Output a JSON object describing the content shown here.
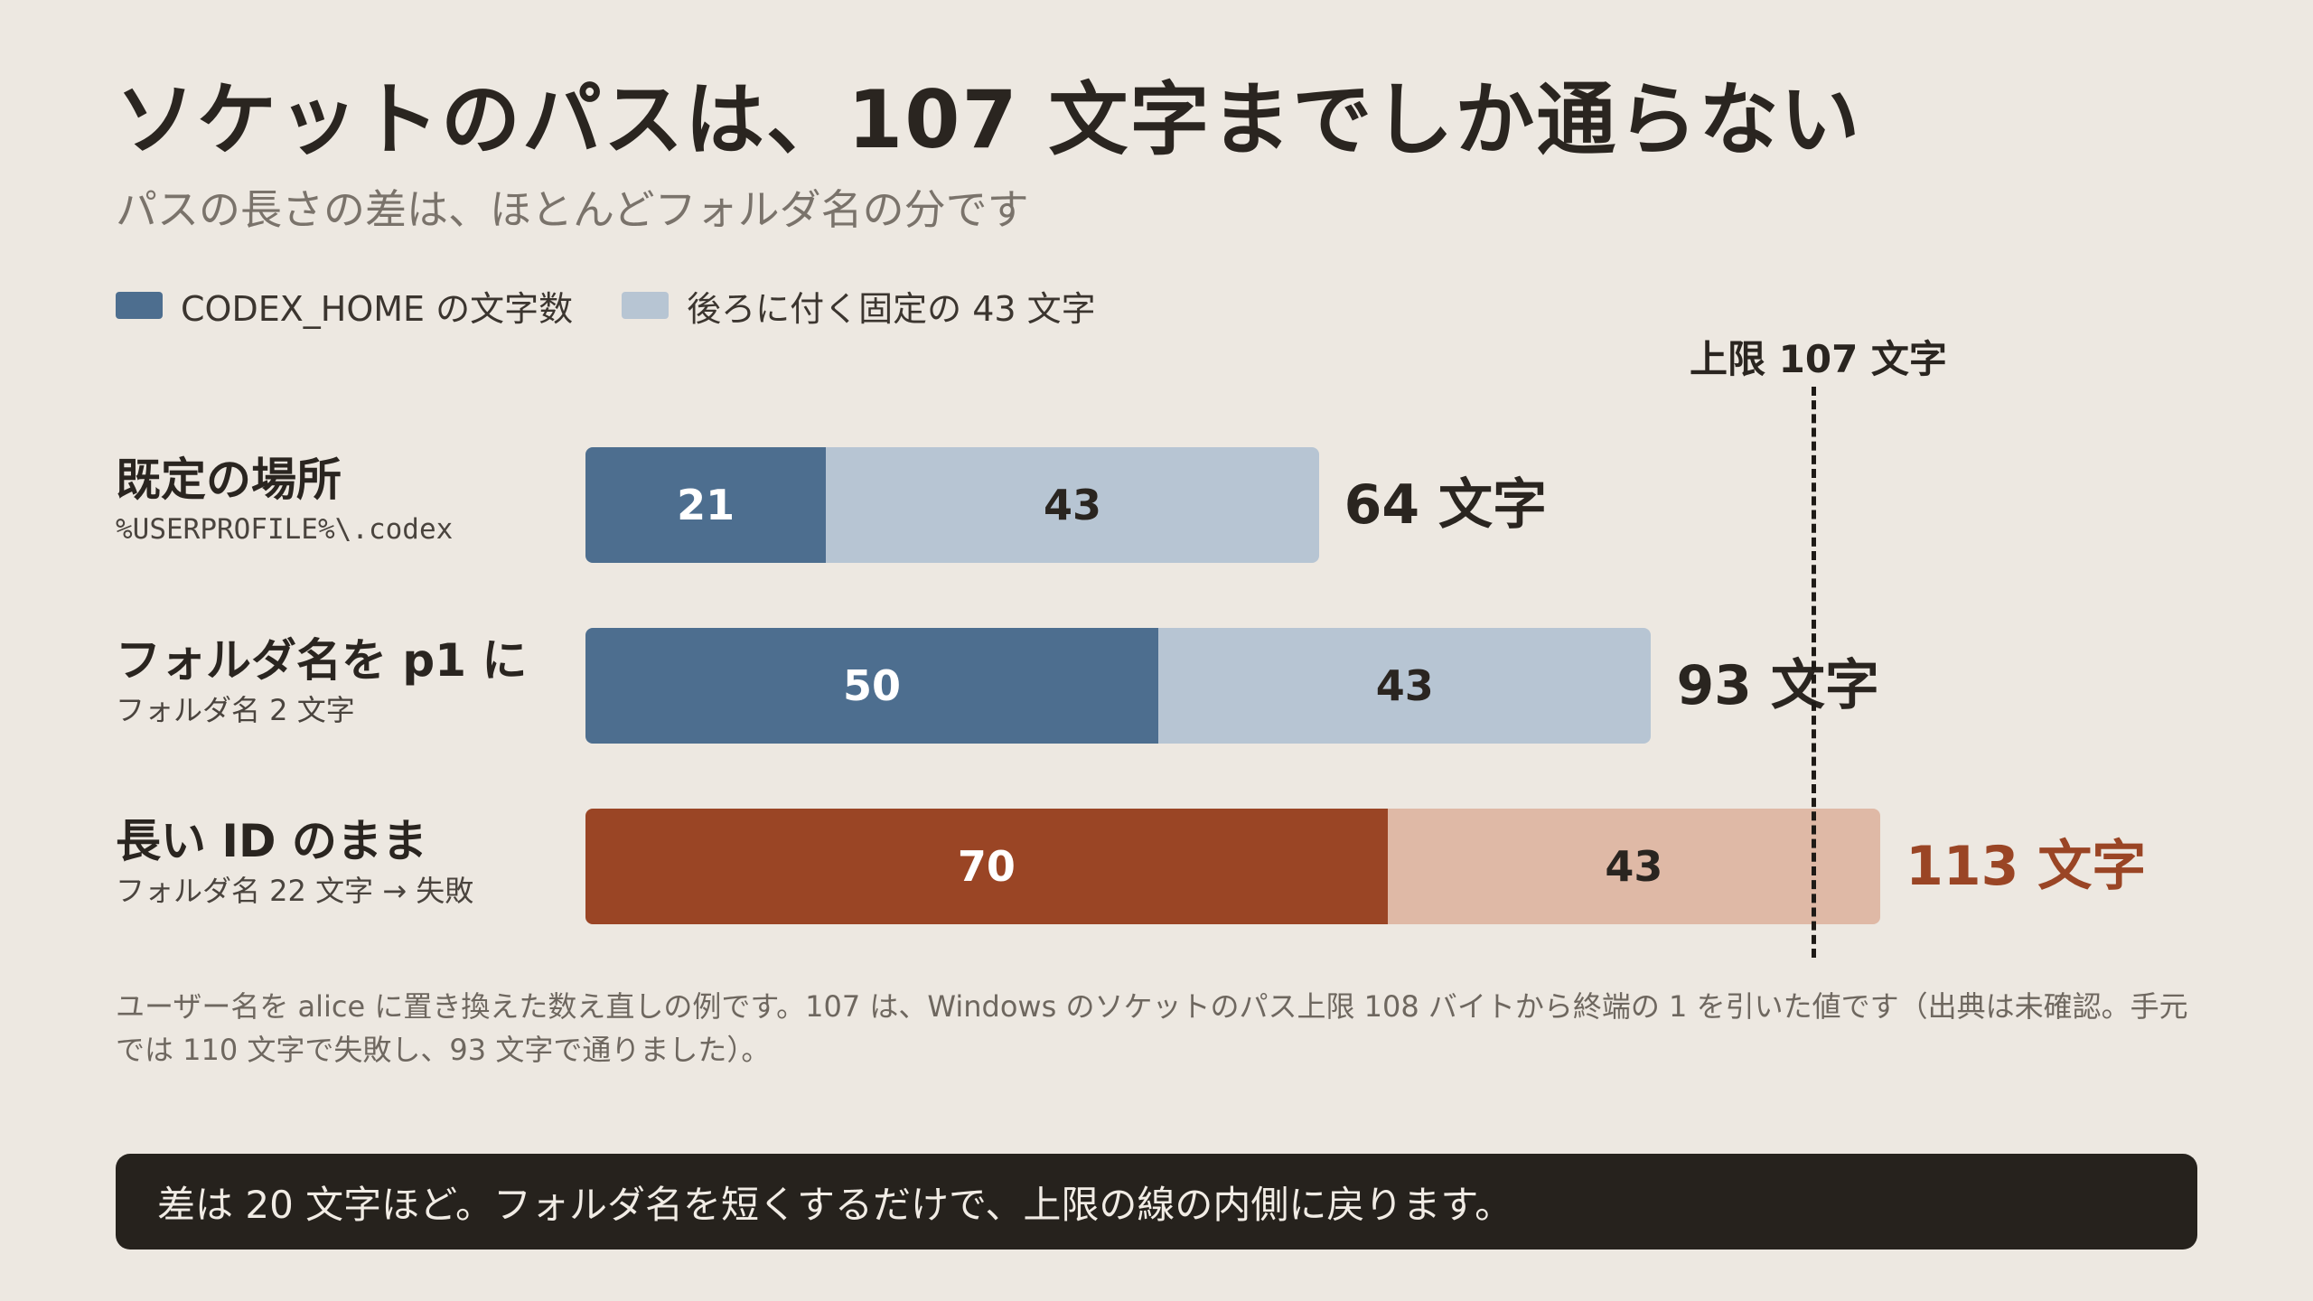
{
  "title": "ソケットのパスは、107 文字までしか通らない",
  "subtitle": "パスの長さの差は、ほとんどフォルダ名の分です",
  "legend": [
    {
      "label": "CODEX_HOME の文字数",
      "color": "#4d6e8f"
    },
    {
      "label": "後ろに付く固定の 43 文字",
      "color": "#b7c5d3"
    }
  ],
  "limit": {
    "label": "上限 107 文字",
    "value": 107
  },
  "chart_data": {
    "type": "bar",
    "orientation": "horizontal",
    "stacked": true,
    "categories": [
      "既定の場所",
      "フォルダ名を p1 に",
      "長い ID のまま"
    ],
    "category_subtitles": [
      "%USERPROFILE%\\.codex",
      "フォルダ名 2 文字",
      "フォルダ名 22 文字 → 失敗"
    ],
    "series": [
      {
        "name": "CODEX_HOME の文字数",
        "values": [
          21,
          50,
          70
        ]
      },
      {
        "name": "後ろに付く固定の 43 文字",
        "values": [
          43,
          43,
          43
        ]
      }
    ],
    "totals": [
      "64 文字",
      "93 文字",
      "113 文字"
    ],
    "colors": {
      "normal_dark": "#4d6e8f",
      "normal_light": "#b7c5d3",
      "over_dark": "#9a4525",
      "over_light": "#dfb9a6",
      "over_text": "#9a4525"
    },
    "over_limit": [
      false,
      false,
      true
    ],
    "reference_line": {
      "value": 107,
      "label": "上限 107 文字",
      "style": "dashed"
    }
  },
  "note": "ユーザー名を alice に置き換えた数え直しの例です。107 は、Windows のソケットのパス上限 108 バイトから終端の 1 を引いた値です（出典は未確認。手元では 110 文字で失敗し、93 文字で通りました）。",
  "callout": "差は 20 文字ほど。フォルダ名を短くするだけで、上限の線の内側に戻ります。"
}
